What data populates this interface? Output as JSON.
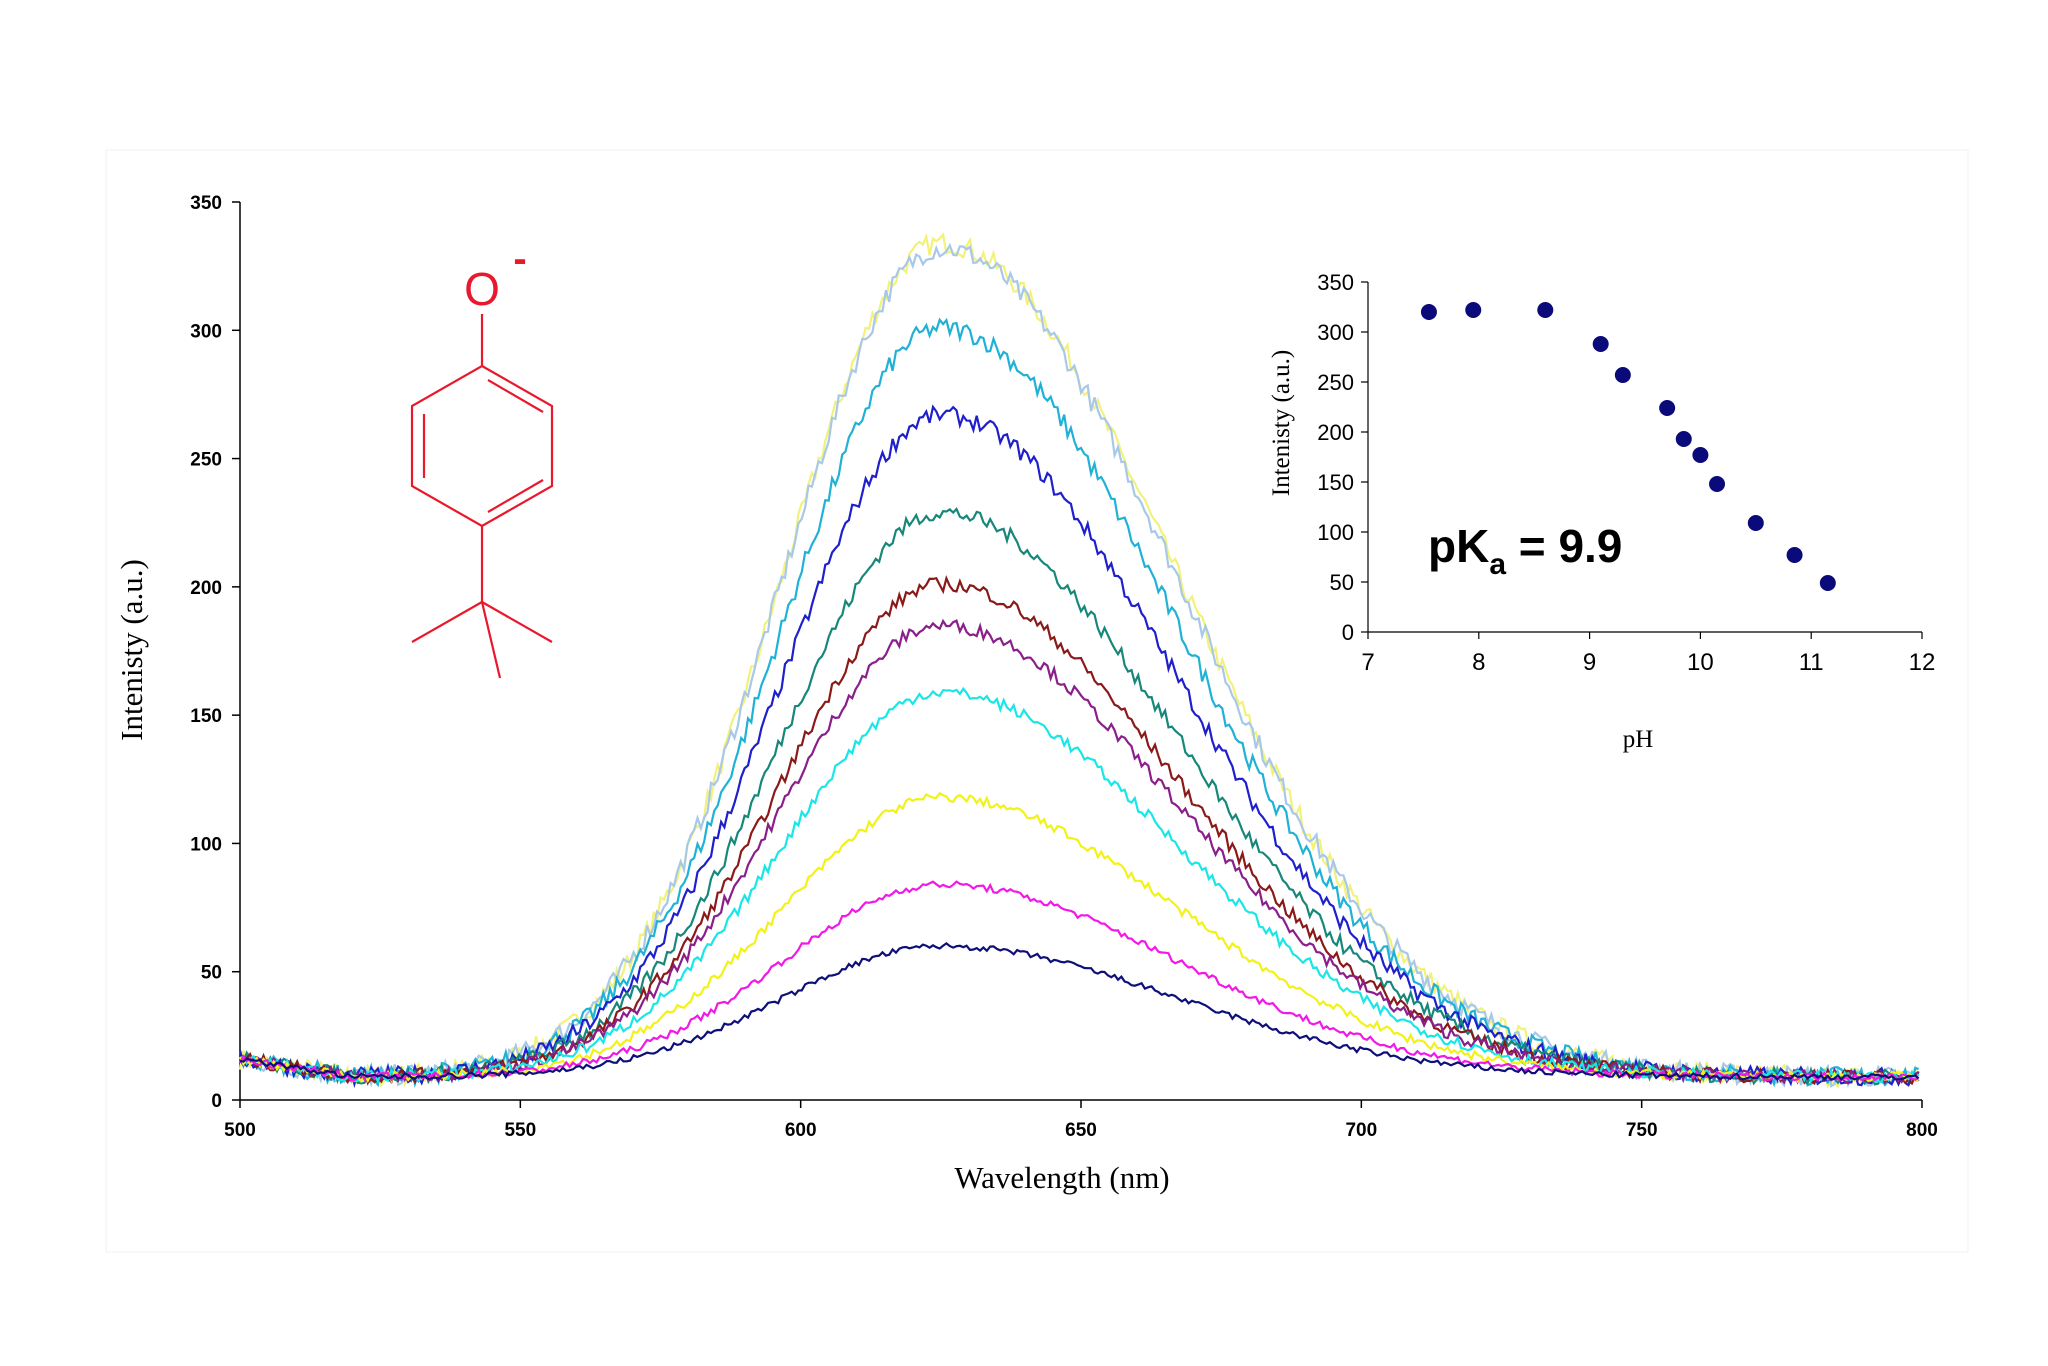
{
  "chart_data": [
    {
      "type": "line",
      "title": "",
      "xlabel": "Wavelength (nm)",
      "ylabel": "Intenisty (a.u.)",
      "xlim": [
        500,
        800
      ],
      "ylim": [
        0,
        350
      ],
      "x_ticks": [
        "500",
        "550",
        "600",
        "650",
        "700",
        "750",
        "800"
      ],
      "y_ticks": [
        "0",
        "50",
        "100",
        "150",
        "200",
        "250",
        "300",
        "350"
      ],
      "grid": false,
      "legend": "none",
      "series": [
        {
          "color": "#F2F27A",
          "peak_x": 625,
          "peak_y": 325
        },
        {
          "color": "#A8C8E8",
          "peak_x": 625,
          "peak_y": 323
        },
        {
          "color": "#1FB1D6",
          "peak_x": 625,
          "peak_y": 292
        },
        {
          "color": "#1F1FCC",
          "peak_x": 625,
          "peak_y": 258
        },
        {
          "color": "#17877A",
          "peak_x": 625,
          "peak_y": 220
        },
        {
          "color": "#8A1A1A",
          "peak_x": 625,
          "peak_y": 192
        },
        {
          "color": "#8A1E8A",
          "peak_x": 625,
          "peak_y": 176
        },
        {
          "color": "#19E6E6",
          "peak_x": 625,
          "peak_y": 150
        },
        {
          "color": "#F2F219",
          "peak_x": 625,
          "peak_y": 109
        },
        {
          "color": "#F019E6",
          "peak_x": 625,
          "peak_y": 75
        },
        {
          "color": "#0F0F7A",
          "peak_x": 625,
          "peak_y": 51
        }
      ],
      "structure_label": "O",
      "structure_charge": "-",
      "structure_color": "#E8192C"
    },
    {
      "type": "scatter",
      "title": "",
      "xlabel": "pH",
      "ylabel": "Intenisty (a.u.)",
      "xlim": [
        7,
        12
      ],
      "ylim": [
        0,
        350
      ],
      "x_ticks": [
        "7",
        "8",
        "9",
        "10",
        "11",
        "12"
      ],
      "y_ticks": [
        "0",
        "50",
        "100",
        "150",
        "200",
        "250",
        "300",
        "350"
      ],
      "grid": false,
      "legend": "none",
      "marker_color": "#0A0A7A",
      "x": [
        7.55,
        7.95,
        8.6,
        9.1,
        9.3,
        9.7,
        9.85,
        10.0,
        10.15,
        10.5,
        10.85,
        11.15
      ],
      "y": [
        320,
        322,
        322,
        288,
        257,
        224,
        193,
        177,
        148,
        109,
        77,
        49
      ],
      "annotation": {
        "main": "pK",
        "sub": "a",
        "rest": " = 9.9"
      }
    }
  ]
}
